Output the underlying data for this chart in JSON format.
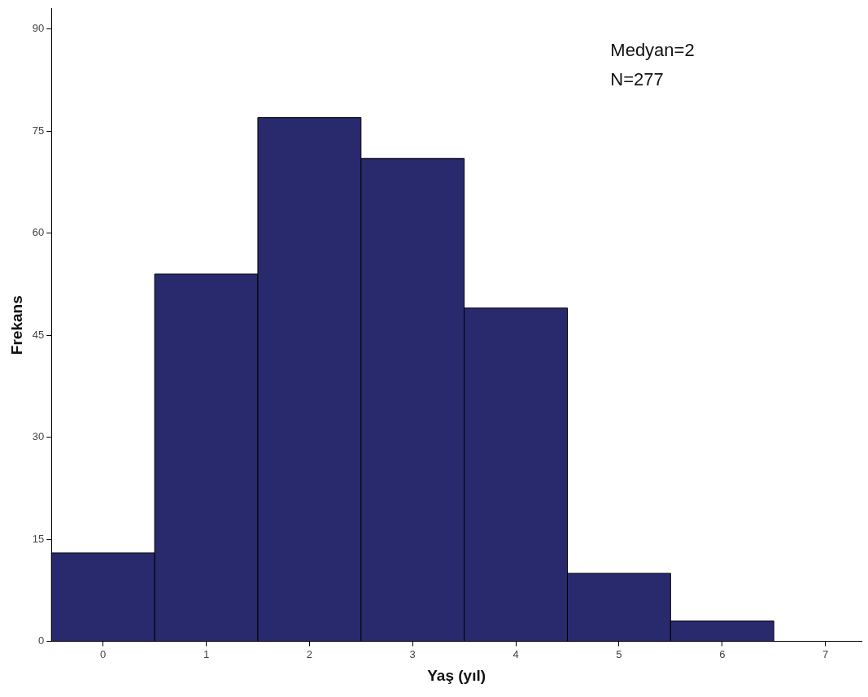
{
  "chart_data": {
    "type": "histogram",
    "xlabel": "Yaş (yıl)",
    "ylabel": "Frekans",
    "bins": [
      -0.5,
      0.5,
      1.5,
      2.5,
      3.5,
      4.5,
      5.5,
      6.5
    ],
    "values": [
      13,
      54,
      77,
      71,
      49,
      10,
      3
    ],
    "color": "#29296e",
    "xlim": [
      -0.5,
      7.35
    ],
    "xticks": [
      0,
      1,
      2,
      3,
      4,
      5,
      6,
      7
    ],
    "ylim": [
      0,
      93
    ],
    "yticks": [
      0,
      15,
      30,
      45,
      60,
      75,
      90
    ],
    "grid": false,
    "annotations": [
      "Medyan=2",
      "N=277"
    ]
  }
}
